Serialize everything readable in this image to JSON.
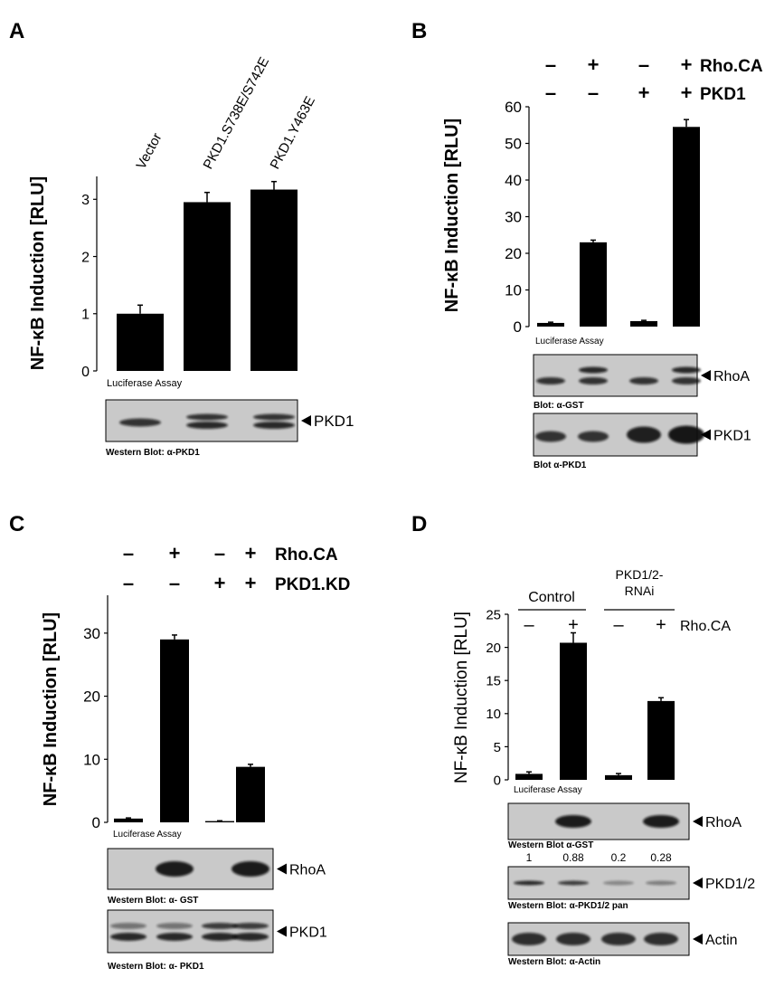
{
  "chart_data": [
    {
      "panel": "A",
      "type": "bar",
      "categories": [
        "Vector",
        "PKD1.S738E/S742E",
        "PKD1.Y463E"
      ],
      "values": [
        1.0,
        2.95,
        3.17
      ],
      "errors": [
        0.15,
        0.17,
        0.14
      ],
      "ylabel": "NF-κB Induction [RLU]",
      "ylim": [
        0,
        3.4
      ],
      "yticks": [
        0,
        1,
        2,
        3
      ],
      "assay_label": "Luciferase Assay",
      "blots": [
        {
          "band_label": "PKD1",
          "caption": "Western Blot: α-PKD1"
        }
      ]
    },
    {
      "panel": "B",
      "type": "bar",
      "conditions": [
        {
          "label": "Rho.CA",
          "signs": [
            "–",
            "+",
            "–",
            "+"
          ]
        },
        {
          "label": "PKD1",
          "signs": [
            "–",
            "–",
            "+",
            "+"
          ]
        }
      ],
      "values": [
        1.0,
        23.0,
        1.5,
        54.5
      ],
      "errors": [
        0.2,
        0.6,
        0.2,
        2.0
      ],
      "ylabel": "NF-κB Induction [RLU]",
      "ylim": [
        0,
        60
      ],
      "yticks": [
        0,
        10,
        20,
        30,
        40,
        50,
        60
      ],
      "assay_label": "Luciferase Assay",
      "blots": [
        {
          "band_label": "RhoA",
          "caption": "Blot: α-GST"
        },
        {
          "band_label": "PKD1",
          "caption": "Blot α-PKD1"
        }
      ]
    },
    {
      "panel": "C",
      "type": "bar",
      "conditions": [
        {
          "label": "Rho.CA",
          "signs": [
            "–",
            "+",
            "–",
            "+"
          ]
        },
        {
          "label": "PKD1.KD",
          "signs": [
            "–",
            "–",
            "+",
            "+"
          ]
        }
      ],
      "values": [
        0.6,
        29.0,
        0.2,
        8.8
      ],
      "errors": [
        0.1,
        0.7,
        0.05,
        0.4
      ],
      "ylabel": "NF-κB Induction [RLU]",
      "ylim": [
        0,
        36
      ],
      "yticks": [
        0,
        10,
        20,
        30
      ],
      "assay_label": "Luciferase Assay",
      "blots": [
        {
          "band_label": "RhoA",
          "caption": "Western Blot: α- GST"
        },
        {
          "band_label": "PKD1",
          "caption": "Western Blot: α- PKD1"
        }
      ]
    },
    {
      "panel": "D",
      "type": "bar",
      "groups": [
        "Control",
        "PKD1/2-\nRNAi"
      ],
      "condition_label": "Rho.CA",
      "signs": [
        "–",
        "+",
        "–",
        "+"
      ],
      "values": [
        0.9,
        20.7,
        0.7,
        11.9
      ],
      "errors": [
        0.3,
        1.5,
        0.25,
        0.5
      ],
      "ylabel": "NF-κB Induction [RLU]",
      "ylim": [
        0,
        25
      ],
      "yticks": [
        0,
        5,
        10,
        15,
        20,
        25
      ],
      "assay_label": "Luciferase Assay",
      "quantification": [
        "1",
        "0.88",
        "0.2",
        "0.28"
      ],
      "blots": [
        {
          "band_label": "RhoA",
          "caption": "Western Blot α-GST"
        },
        {
          "band_label": "PKD1/2",
          "caption": "Western Blot: α-PKD1/2 pan"
        },
        {
          "band_label": "Actin",
          "caption": "Western Blot: α-Actin"
        }
      ]
    }
  ]
}
